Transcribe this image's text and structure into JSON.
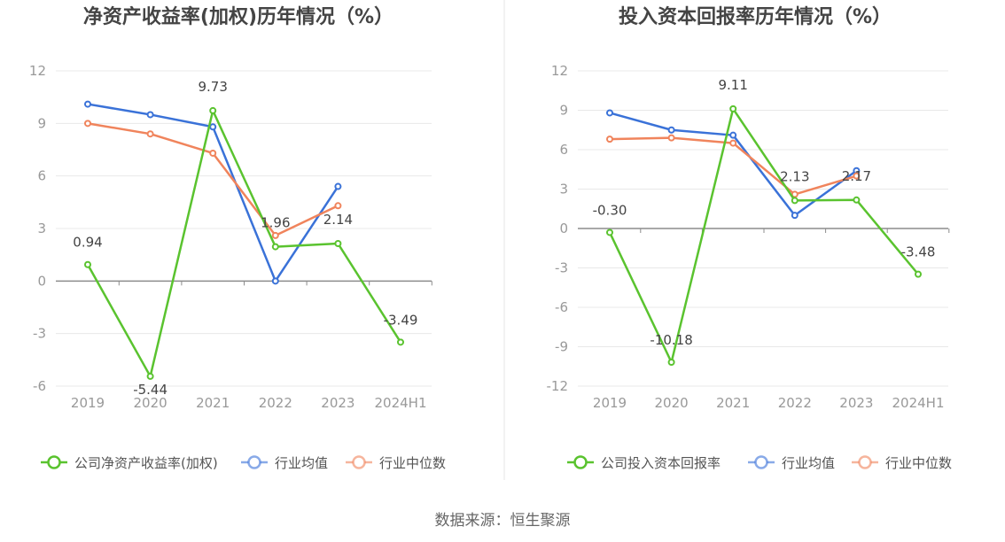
{
  "source": "数据来源：恒生聚源",
  "chart_data": [
    {
      "type": "line",
      "title": "净资产收益率(加权)历年情况（%）",
      "categories": [
        "2019",
        "2020",
        "2021",
        "2022",
        "2023",
        "2024H1"
      ],
      "ylim": [
        -6,
        12
      ],
      "yticks": [
        "12",
        "9",
        "6",
        "3",
        "0",
        "-3",
        "-6"
      ],
      "grid": true,
      "legend_position": "bottom",
      "series": [
        {
          "name": "公司净资产收益率(加权)",
          "color": "#5ac32f",
          "values": [
            0.94,
            -5.44,
            9.73,
            1.96,
            2.14,
            -3.49
          ],
          "labels": [
            "0.94",
            "-5.44",
            "9.73",
            "1.96",
            "2.14",
            "-3.49"
          ]
        },
        {
          "name": "行业均值",
          "color": "#3a72d8",
          "values": [
            10.1,
            9.5,
            8.8,
            0.0,
            5.4,
            null
          ]
        },
        {
          "name": "行业中位数",
          "color": "#f0845c",
          "values": [
            9.0,
            8.4,
            7.3,
            2.6,
            4.3,
            null
          ]
        }
      ]
    },
    {
      "type": "line",
      "title": "投入资本回报率历年情况（%）",
      "categories": [
        "2019",
        "2020",
        "2021",
        "2022",
        "2023",
        "2024H1"
      ],
      "ylim": [
        -12,
        12
      ],
      "yticks": [
        "12",
        "9",
        "6",
        "3",
        "0",
        "-3",
        "-6",
        "-9",
        "-12"
      ],
      "grid": true,
      "legend_position": "bottom",
      "series": [
        {
          "name": "公司投入资本回报率",
          "color": "#5ac32f",
          "values": [
            -0.3,
            -10.18,
            9.11,
            2.13,
            2.17,
            -3.48
          ],
          "labels": [
            "-0.30",
            "-10.18",
            "9.11",
            "2.13",
            "2.17",
            "-3.48"
          ]
        },
        {
          "name": "行业均值",
          "color": "#3a72d8",
          "values": [
            8.8,
            7.5,
            7.1,
            1.0,
            4.4,
            null
          ]
        },
        {
          "name": "行业中位数",
          "color": "#f0845c",
          "values": [
            6.8,
            6.9,
            6.5,
            2.6,
            4.0,
            null
          ]
        }
      ]
    }
  ]
}
